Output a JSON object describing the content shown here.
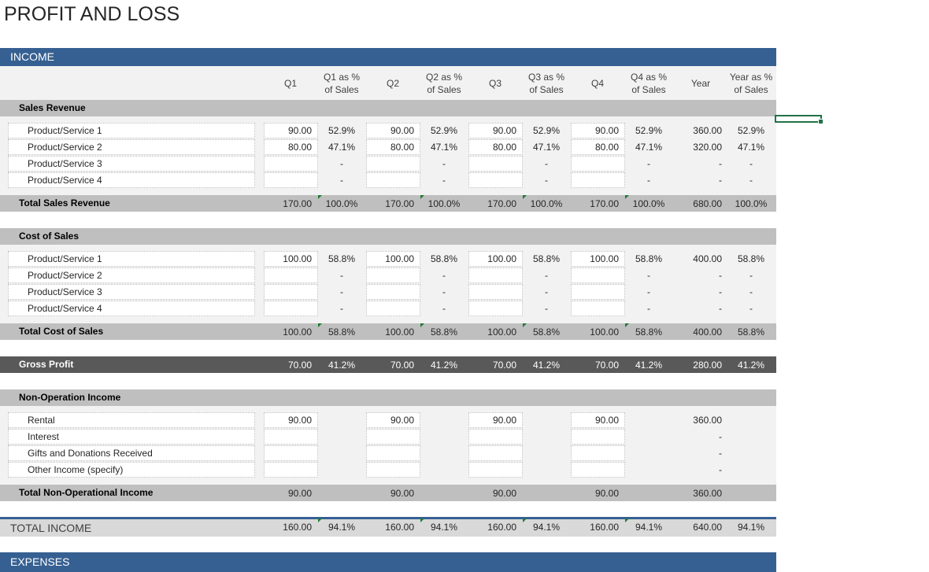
{
  "title": "PROFIT AND LOSS",
  "income_band": "INCOME",
  "expenses_band": "EXPENSES",
  "columns": [
    "Q1",
    "Q1 as %\nof Sales",
    "Q2",
    "Q2 as %\nof Sales",
    "Q3",
    "Q3 as %\nof Sales",
    "Q4",
    "Q4 as %\nof Sales",
    "Year",
    "Year as %\nof Sales"
  ],
  "sales_revenue": {
    "label": "Sales Revenue",
    "rows": [
      {
        "label": "Product/Service 1",
        "vals": [
          "90.00",
          "52.9%",
          "90.00",
          "52.9%",
          "90.00",
          "52.9%",
          "90.00",
          "52.9%",
          "360.00",
          "52.9%"
        ]
      },
      {
        "label": "Product/Service 2",
        "vals": [
          "80.00",
          "47.1%",
          "80.00",
          "47.1%",
          "80.00",
          "47.1%",
          "80.00",
          "47.1%",
          "320.00",
          "47.1%"
        ]
      },
      {
        "label": "Product/Service 3",
        "vals": [
          "",
          "-",
          "",
          "-",
          "",
          "-",
          "",
          "-",
          "-",
          "-"
        ]
      },
      {
        "label": "Product/Service 4",
        "vals": [
          "",
          "-",
          "",
          "-",
          "",
          "-",
          "",
          "-",
          "-",
          "-"
        ]
      }
    ],
    "total_label": "Total Sales Revenue",
    "total": [
      "170.00",
      "100.0%",
      "170.00",
      "100.0%",
      "170.00",
      "100.0%",
      "170.00",
      "100.0%",
      "680.00",
      "100.0%"
    ]
  },
  "cost_of_sales": {
    "label": "Cost of Sales",
    "rows": [
      {
        "label": "Product/Service 1",
        "vals": [
          "100.00",
          "58.8%",
          "100.00",
          "58.8%",
          "100.00",
          "58.8%",
          "100.00",
          "58.8%",
          "400.00",
          "58.8%"
        ]
      },
      {
        "label": "Product/Service 2",
        "vals": [
          "",
          "-",
          "",
          "-",
          "",
          "-",
          "",
          "-",
          "-",
          "-"
        ]
      },
      {
        "label": "Product/Service 3",
        "vals": [
          "",
          "-",
          "",
          "-",
          "",
          "-",
          "",
          "-",
          "-",
          "-"
        ]
      },
      {
        "label": "Product/Service 4",
        "vals": [
          "",
          "-",
          "",
          "-",
          "",
          "-",
          "",
          "-",
          "-",
          "-"
        ]
      }
    ],
    "total_label": "Total Cost of Sales",
    "total": [
      "100.00",
      "58.8%",
      "100.00",
      "58.8%",
      "100.00",
      "58.8%",
      "100.00",
      "58.8%",
      "400.00",
      "58.8%"
    ]
  },
  "gross_profit": {
    "label": "Gross Profit",
    "vals": [
      "70.00",
      "41.2%",
      "70.00",
      "41.2%",
      "70.00",
      "41.2%",
      "70.00",
      "41.2%",
      "280.00",
      "41.2%"
    ]
  },
  "non_operation": {
    "label": "Non-Operation Income",
    "rows": [
      {
        "label": "Rental",
        "vals": [
          "90.00",
          "",
          "90.00",
          "",
          "90.00",
          "",
          "90.00",
          "",
          "360.00",
          ""
        ]
      },
      {
        "label": "Interest",
        "vals": [
          "",
          "",
          "",
          "",
          "",
          "",
          "",
          "",
          "-",
          ""
        ]
      },
      {
        "label": "Gifts and Donations Received",
        "vals": [
          "",
          "",
          "",
          "",
          "",
          "",
          "",
          "",
          "-",
          ""
        ]
      },
      {
        "label": "Other Income (specify)",
        "vals": [
          "",
          "",
          "",
          "",
          "",
          "",
          "",
          "",
          "-",
          ""
        ]
      }
    ],
    "total_label": "Total Non-Operational Income",
    "total": [
      "90.00",
      "",
      "90.00",
      "",
      "90.00",
      "",
      "90.00",
      "",
      "360.00",
      ""
    ]
  },
  "total_income": {
    "label": "TOTAL INCOME",
    "vals": [
      "160.00",
      "94.1%",
      "160.00",
      "94.1%",
      "160.00",
      "94.1%",
      "160.00",
      "94.1%",
      "640.00",
      "94.1%"
    ]
  }
}
